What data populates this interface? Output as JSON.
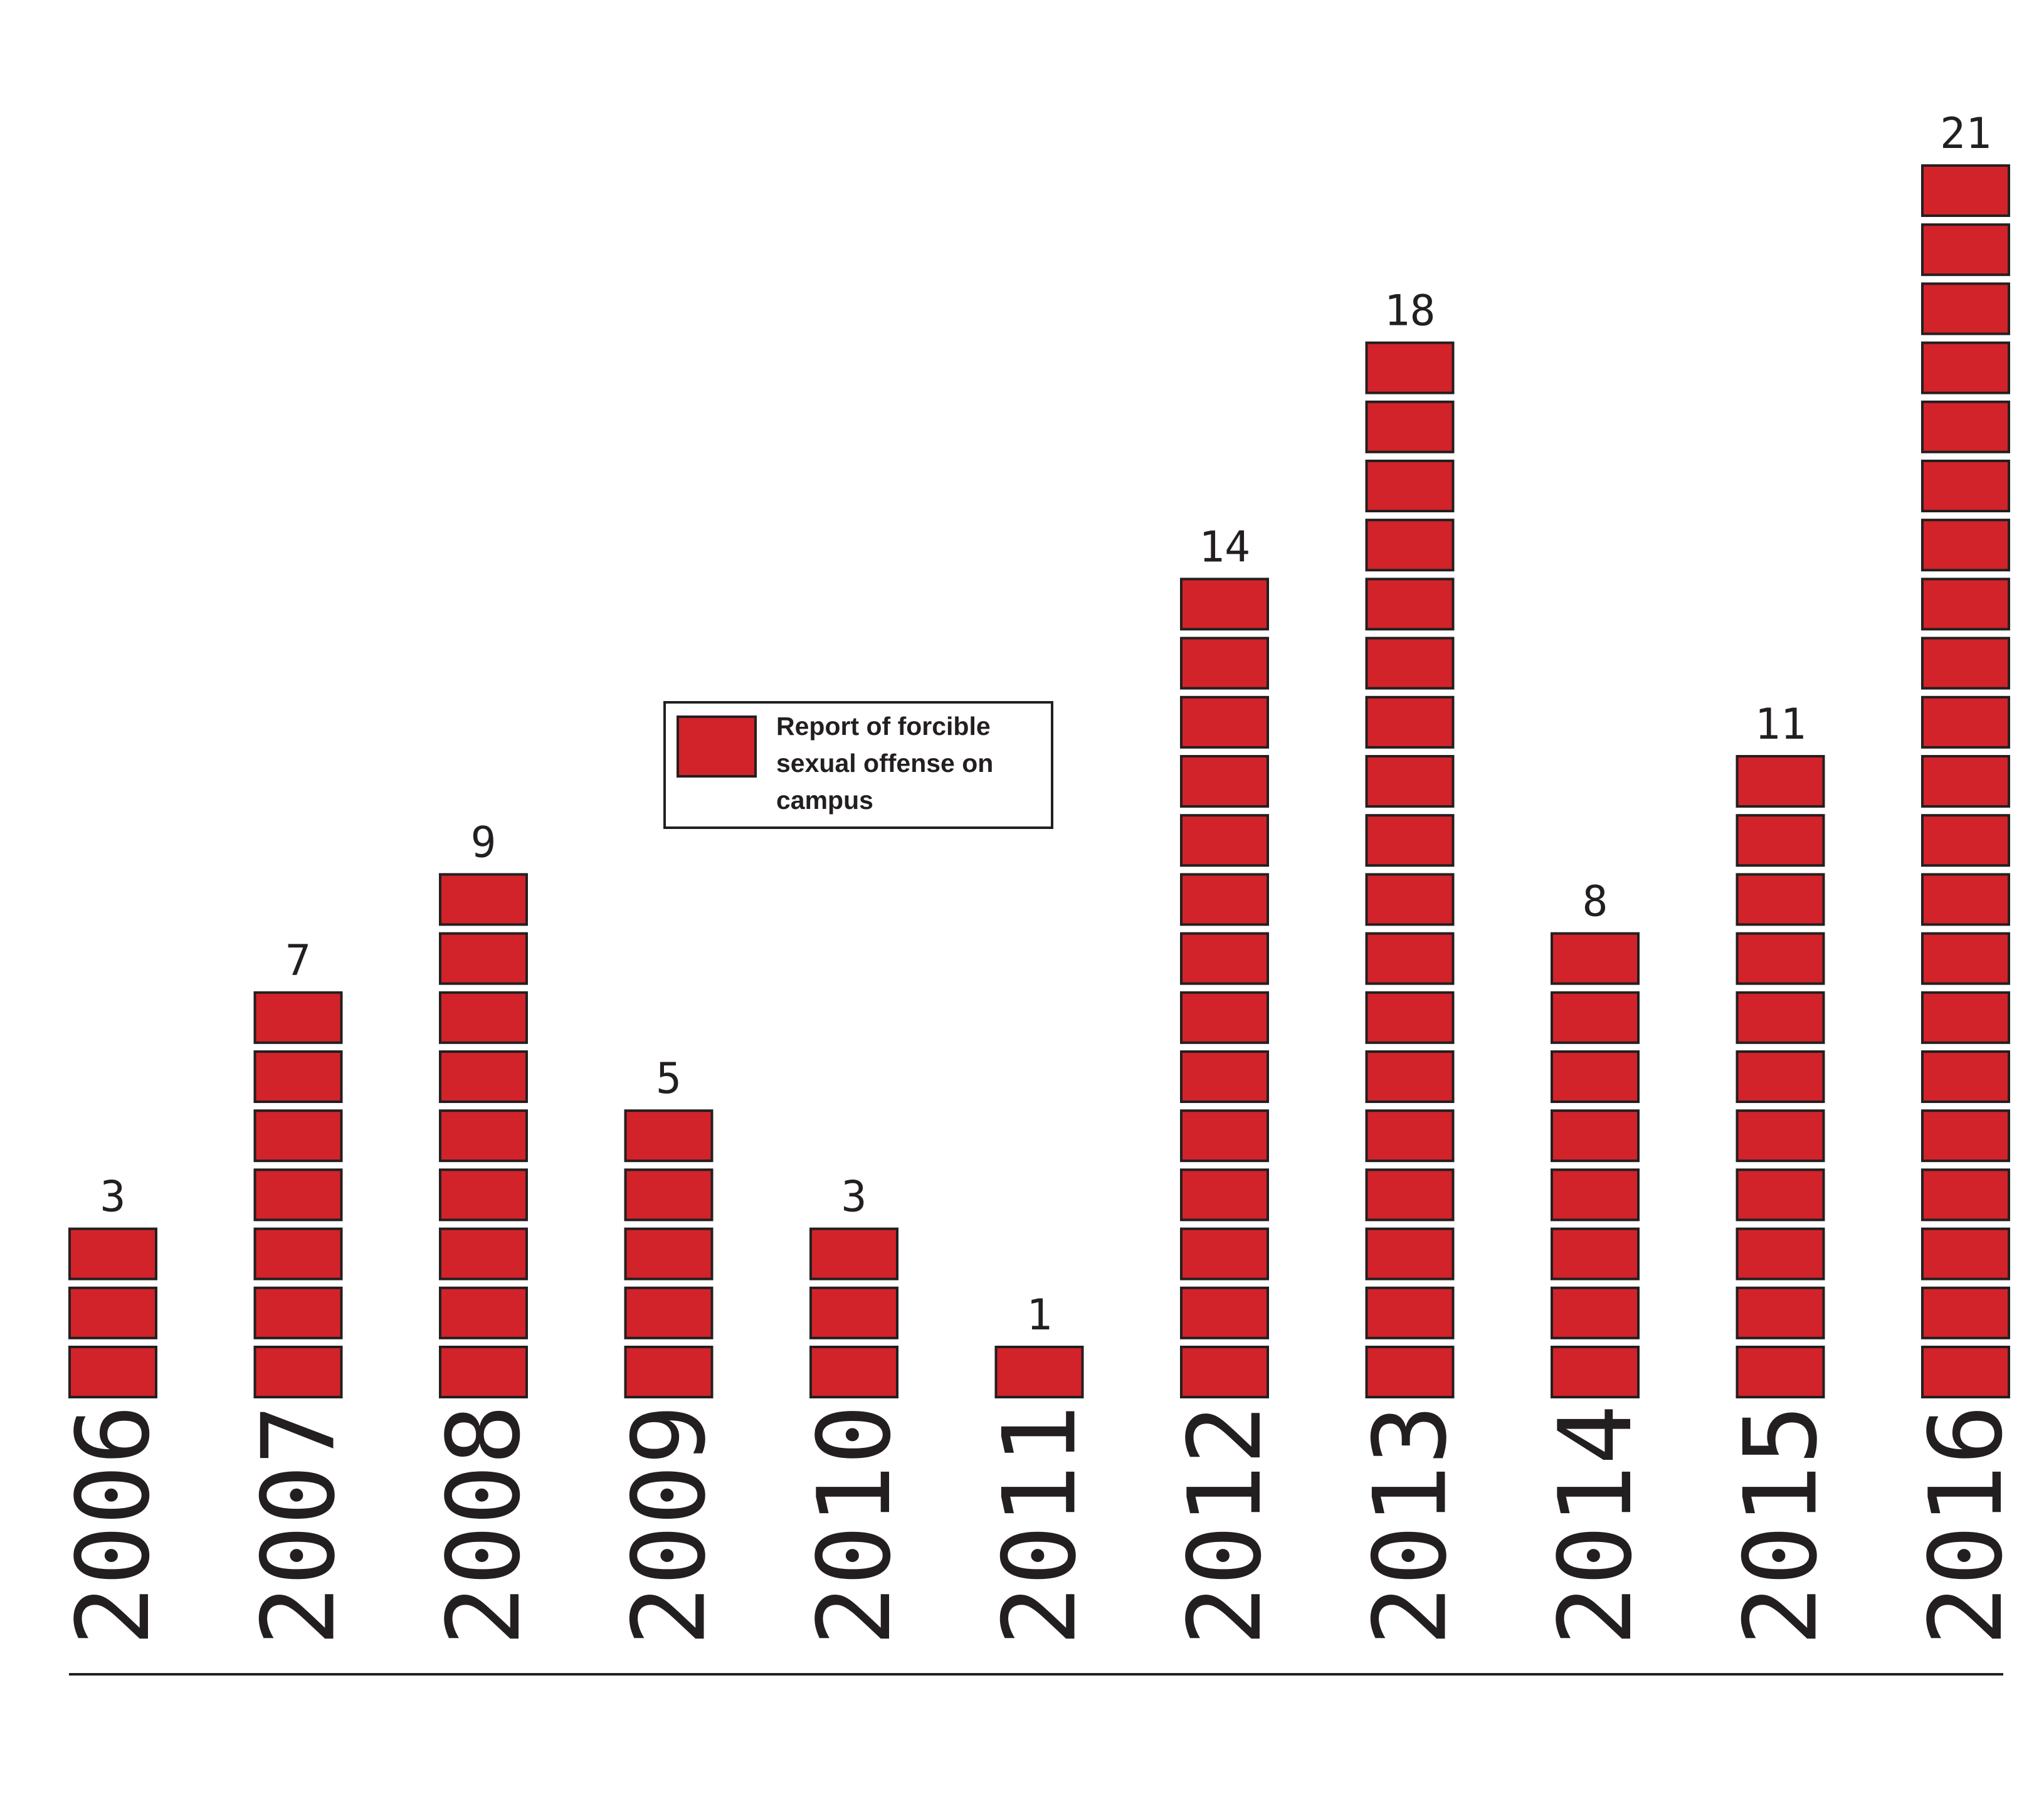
{
  "chart_data": {
    "type": "bar",
    "style": "stacked-unit-blocks",
    "categories": [
      "2006",
      "2007",
      "2008",
      "2009",
      "2010",
      "2011",
      "2012",
      "2013",
      "2014",
      "2015",
      "2016"
    ],
    "values": [
      3,
      7,
      9,
      5,
      3,
      1,
      14,
      18,
      8,
      11,
      21
    ],
    "value_labels": [
      "3",
      "7",
      "9",
      "5",
      "3",
      "1",
      "14",
      "18",
      "8",
      "11",
      "21"
    ],
    "legend": {
      "label_lines": [
        "Report of forcible",
        "sexual offense on",
        "campus"
      ],
      "placement": "upper-left-center"
    },
    "colors": {
      "block_fill": "#d2232a",
      "block_stroke": "#231f20",
      "text": "#231f20",
      "baseline": "#231f20"
    },
    "grid": false
  }
}
